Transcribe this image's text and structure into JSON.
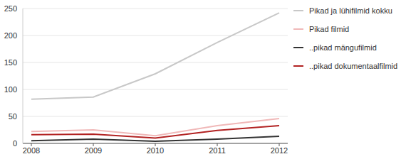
{
  "chart_data": {
    "type": "line",
    "categories": [
      "2008",
      "2009",
      "2010",
      "2011",
      "2012"
    ],
    "series": [
      {
        "name": "Pikad ja lühifilmid kokku",
        "color": "#c8c8c8",
        "values": [
          82,
          86,
          129,
          187,
          242
        ]
      },
      {
        "name": "Pikad filmid",
        "color": "#f0b8b8",
        "values": [
          22,
          25,
          14,
          33,
          46
        ]
      },
      {
        "name": "..pikad mängufilmid",
        "color": "#333333",
        "values": [
          5,
          8,
          4,
          8,
          13
        ]
      },
      {
        "name": "..pikad dokumentaalfilmid",
        "color": "#b22222",
        "values": [
          16,
          17,
          10,
          24,
          33
        ]
      }
    ],
    "ylim": [
      0,
      250
    ],
    "yticks": [
      0,
      50,
      100,
      150,
      200,
      250
    ],
    "grid": true,
    "legend": "right"
  }
}
